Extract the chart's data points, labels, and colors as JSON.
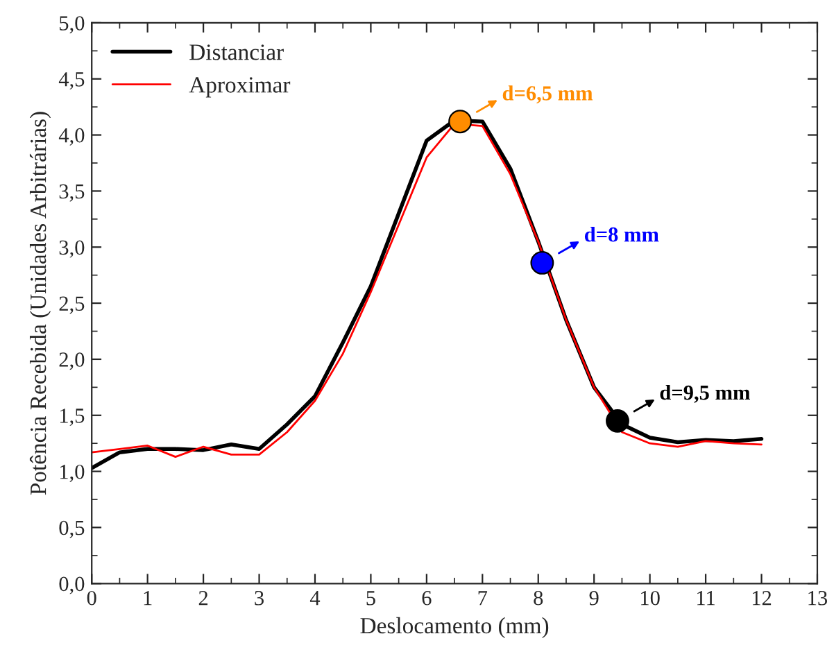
{
  "chart_data": {
    "type": "line",
    "xlabel": "Deslocamento (mm)",
    "ylabel": "Potência Recebida (Unidades Arbitrárias)",
    "x": [
      0,
      0.5,
      1,
      1.5,
      2,
      2.5,
      3,
      3.5,
      4,
      4.5,
      5,
      5.5,
      6,
      6.5,
      7,
      7.5,
      8,
      8.5,
      9,
      9.5,
      10,
      10.5,
      11,
      11.5,
      12
    ],
    "series": [
      {
        "name": "Distanciar",
        "color": "#000000",
        "values": [
          1.03,
          1.17,
          1.2,
          1.2,
          1.19,
          1.24,
          1.2,
          1.42,
          1.67,
          2.15,
          2.65,
          3.3,
          3.95,
          4.13,
          4.12,
          3.7,
          3.05,
          2.35,
          1.75,
          1.42,
          1.3,
          1.26,
          1.28,
          1.27,
          1.29
        ]
      },
      {
        "name": "Aproximar",
        "color": "#ff0000",
        "values": [
          1.17,
          1.2,
          1.23,
          1.13,
          1.22,
          1.15,
          1.15,
          1.35,
          1.63,
          2.05,
          2.6,
          3.2,
          3.8,
          4.1,
          4.08,
          3.65,
          3.05,
          2.35,
          1.75,
          1.35,
          1.25,
          1.22,
          1.27,
          1.25,
          1.24
        ]
      },
      {
        "type": "scatter",
        "x": [
          6.6,
          8.07,
          9.42
        ],
        "values": [
          4.12,
          2.86,
          1.45
        ],
        "colors": [
          "#ff8c00",
          "#0000ff",
          "#000000"
        ]
      }
    ],
    "annotations": [
      {
        "text": "d=6,5 mm",
        "x": 6.6,
        "y": 4.12
      },
      {
        "text": "d=8 mm",
        "x": 8.07,
        "y": 2.86
      },
      {
        "text": "d=9,5 mm",
        "x": 9.42,
        "y": 1.45
      }
    ],
    "xlim": [
      0,
      13
    ],
    "xticks": [
      0,
      1,
      2,
      3,
      4,
      5,
      6,
      7,
      8,
      9,
      10,
      11,
      12,
      13
    ],
    "ylim": [
      0,
      5
    ],
    "yticks": [
      {
        "value": 0,
        "label": "0,0"
      },
      {
        "value": 0.5,
        "label": "0,5"
      },
      {
        "value": 1,
        "label": "1,0"
      },
      {
        "value": 1.5,
        "label": "1,5"
      },
      {
        "value": 2,
        "label": "2,0"
      },
      {
        "value": 2.5,
        "label": "2,5"
      },
      {
        "value": 3,
        "label": "3,0"
      },
      {
        "value": 3.5,
        "label": "3,5"
      },
      {
        "value": 4,
        "label": "4,0"
      },
      {
        "value": 4.5,
        "label": "4,5"
      },
      {
        "value": 5,
        "label": "5,0"
      }
    ],
    "legend": "top left",
    "grid": false
  }
}
